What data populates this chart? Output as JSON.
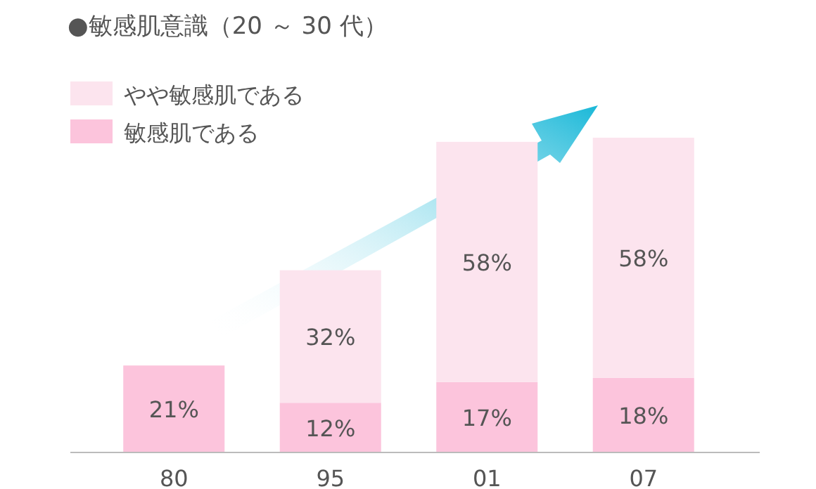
{
  "chart_data": {
    "type": "bar",
    "title": "●敏感肌意識（20 ～ 30 代）",
    "categories": [
      "80",
      "95",
      "01",
      "07"
    ],
    "stacked": true,
    "legend": "top left",
    "series": [
      {
        "name": "敏感肌である",
        "color": "#fcc4dc",
        "values": [
          21,
          12,
          17,
          18
        ],
        "value_labels": [
          "21%",
          "12%",
          "17%",
          "18%"
        ]
      },
      {
        "name": "やや敏感肌である",
        "color": "#fce4ee",
        "values": [
          null,
          32,
          58,
          58
        ],
        "value_labels": [
          null,
          "32%",
          "58%",
          "58%"
        ]
      }
    ]
  }
}
